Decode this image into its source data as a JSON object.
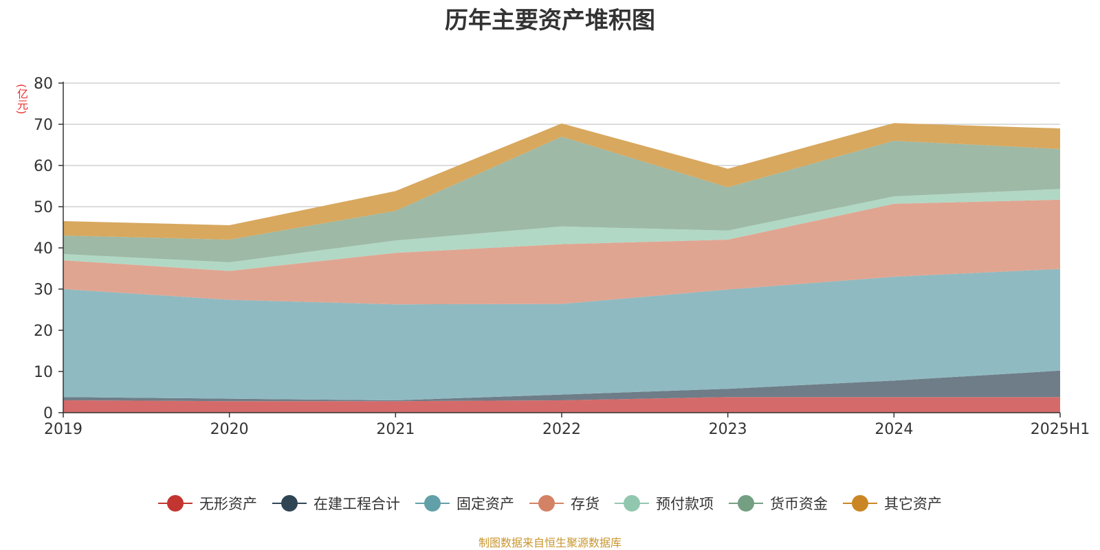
{
  "chart_data": {
    "type": "area",
    "stacked": true,
    "title": "历年主要资产堆积图",
    "unit_label": "(亿元)",
    "x": [
      "2019",
      "2020",
      "2021",
      "2022",
      "2023",
      "2024",
      "2025H1"
    ],
    "ylim": [
      0,
      80
    ],
    "yticks": [
      0,
      10,
      20,
      30,
      40,
      50,
      60,
      70,
      80
    ],
    "grid": true,
    "legend_position": "bottom",
    "series": [
      {
        "name": "无形资产",
        "color": "#c23531",
        "fill": "#d46b6a",
        "values": [
          3.0,
          2.8,
          2.8,
          3.0,
          3.8,
          3.8,
          3.8
        ]
      },
      {
        "name": "在建工程合计",
        "color": "#2f4554",
        "fill": "#6e7d88",
        "values": [
          0.8,
          0.6,
          0.2,
          1.4,
          2.0,
          4.0,
          6.4
        ]
      },
      {
        "name": "固定资产",
        "color": "#61a0a8",
        "fill": "#90bac1",
        "values": [
          26.2,
          24.0,
          23.3,
          22.0,
          24.1,
          25.2,
          24.7
        ]
      },
      {
        "name": "存货",
        "color": "#d48265",
        "fill": "#e0a591",
        "values": [
          7.0,
          7.0,
          12.5,
          14.5,
          12.1,
          17.7,
          16.8
        ]
      },
      {
        "name": "预付款项",
        "color": "#91c7ae",
        "fill": "#b1d8c5",
        "values": [
          1.5,
          2.1,
          3.0,
          4.3,
          2.2,
          1.8,
          2.6
        ]
      },
      {
        "name": "货币资金",
        "color": "#749f83",
        "fill": "#9eb9a6",
        "values": [
          4.5,
          5.5,
          7.2,
          21.8,
          10.5,
          13.5,
          9.7
        ]
      },
      {
        "name": "其它资产",
        "color": "#ca8622",
        "fill": "#d8a85e",
        "values": [
          3.5,
          3.5,
          4.8,
          3.2,
          4.5,
          4.3,
          5.0
        ]
      }
    ]
  },
  "footer": {
    "source": "制图数据来自恒生聚源数据库"
  }
}
